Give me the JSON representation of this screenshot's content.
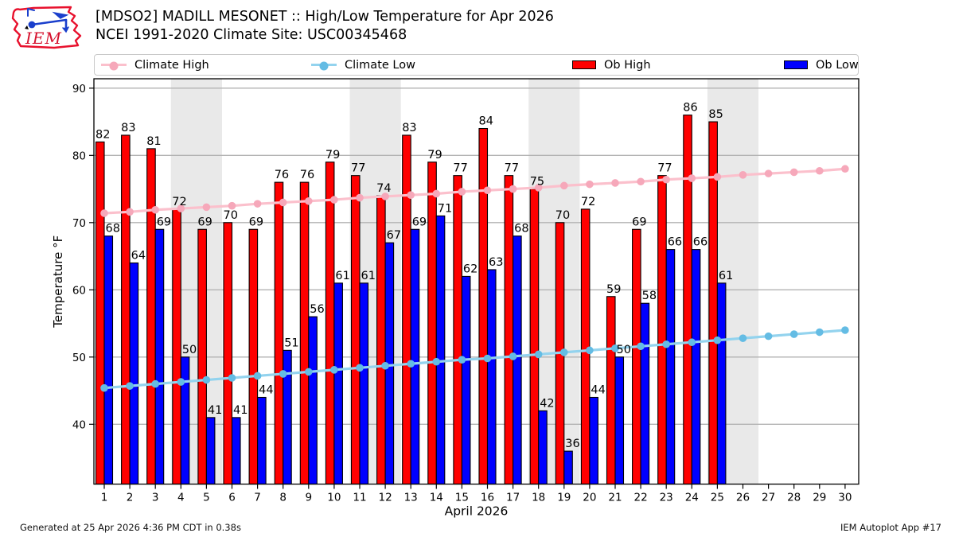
{
  "header": {
    "logo_text": "IEM"
  },
  "legend": {
    "position": "top"
  },
  "chart_data": {
    "type": "bar",
    "title": "[MDSO2] MADILL MESONET :: High/Low Temperature for Apr 2026",
    "subtitle": "NCEI 1991-2020 Climate Site: USC00345468",
    "xlabel": "April 2026",
    "ylabel": "Temperature °F",
    "ylim": [
      31.1,
      91.4
    ],
    "yticks": [
      40,
      50,
      60,
      70,
      80,
      90
    ],
    "grid": true,
    "legend_position": "top",
    "categories": [
      1,
      2,
      3,
      4,
      5,
      6,
      7,
      8,
      9,
      10,
      11,
      12,
      13,
      14,
      15,
      16,
      17,
      18,
      19,
      20,
      21,
      22,
      23,
      24,
      25,
      26,
      27,
      28,
      29,
      30
    ],
    "weekend_bands": [
      [
        4,
        5
      ],
      [
        11,
        12
      ],
      [
        18,
        19
      ],
      [
        25,
        26
      ]
    ],
    "series": [
      {
        "name": "Ob High",
        "type": "bar",
        "color": "#ff0000",
        "values": [
          82,
          83,
          81,
          72,
          69,
          70,
          69,
          76,
          76,
          79,
          77,
          74,
          83,
          79,
          77,
          84,
          77,
          75,
          70,
          72,
          59,
          69,
          77,
          86,
          85,
          null,
          null,
          null,
          null,
          null
        ]
      },
      {
        "name": "Ob Low",
        "type": "bar",
        "color": "#0000ff",
        "values": [
          68,
          64,
          69,
          50,
          41,
          41,
          44,
          51,
          56,
          61,
          61,
          67,
          69,
          71,
          62,
          63,
          68,
          42,
          36,
          44,
          50,
          58,
          66,
          66,
          61,
          null,
          null,
          null,
          null,
          null
        ]
      },
      {
        "name": "Climate High",
        "type": "line",
        "color": "#fbc0cc",
        "marker_color": "#f6a8ba",
        "values": [
          71.4,
          71.6,
          71.9,
          72.1,
          72.3,
          72.5,
          72.8,
          73.0,
          73.2,
          73.4,
          73.7,
          73.9,
          74.1,
          74.3,
          74.6,
          74.8,
          75.0,
          75.2,
          75.5,
          75.7,
          75.9,
          76.1,
          76.4,
          76.6,
          76.8,
          77.1,
          77.3,
          77.5,
          77.7,
          78.0
        ]
      },
      {
        "name": "Climate Low",
        "type": "line",
        "color": "#93d3ee",
        "marker_color": "#64bce4",
        "values": [
          45.4,
          45.7,
          46.0,
          46.3,
          46.6,
          46.9,
          47.2,
          47.5,
          47.8,
          48.1,
          48.4,
          48.7,
          49.0,
          49.3,
          49.6,
          49.8,
          50.1,
          50.4,
          50.7,
          51.0,
          51.3,
          51.6,
          51.9,
          52.2,
          52.5,
          52.8,
          53.1,
          53.4,
          53.7,
          54.0
        ]
      }
    ]
  },
  "colors": {
    "weekend_band": "#e9e9e9",
    "grid": "#b3b3b3",
    "axis": "#000000",
    "background": "#ffffff",
    "logo_red": "#e8112d",
    "logo_blue": "#1a3fcc"
  },
  "footer": {
    "left": "Generated at 25 Apr 2026 4:36 PM CDT in 0.38s",
    "right": "IEM Autoplot App #17"
  }
}
